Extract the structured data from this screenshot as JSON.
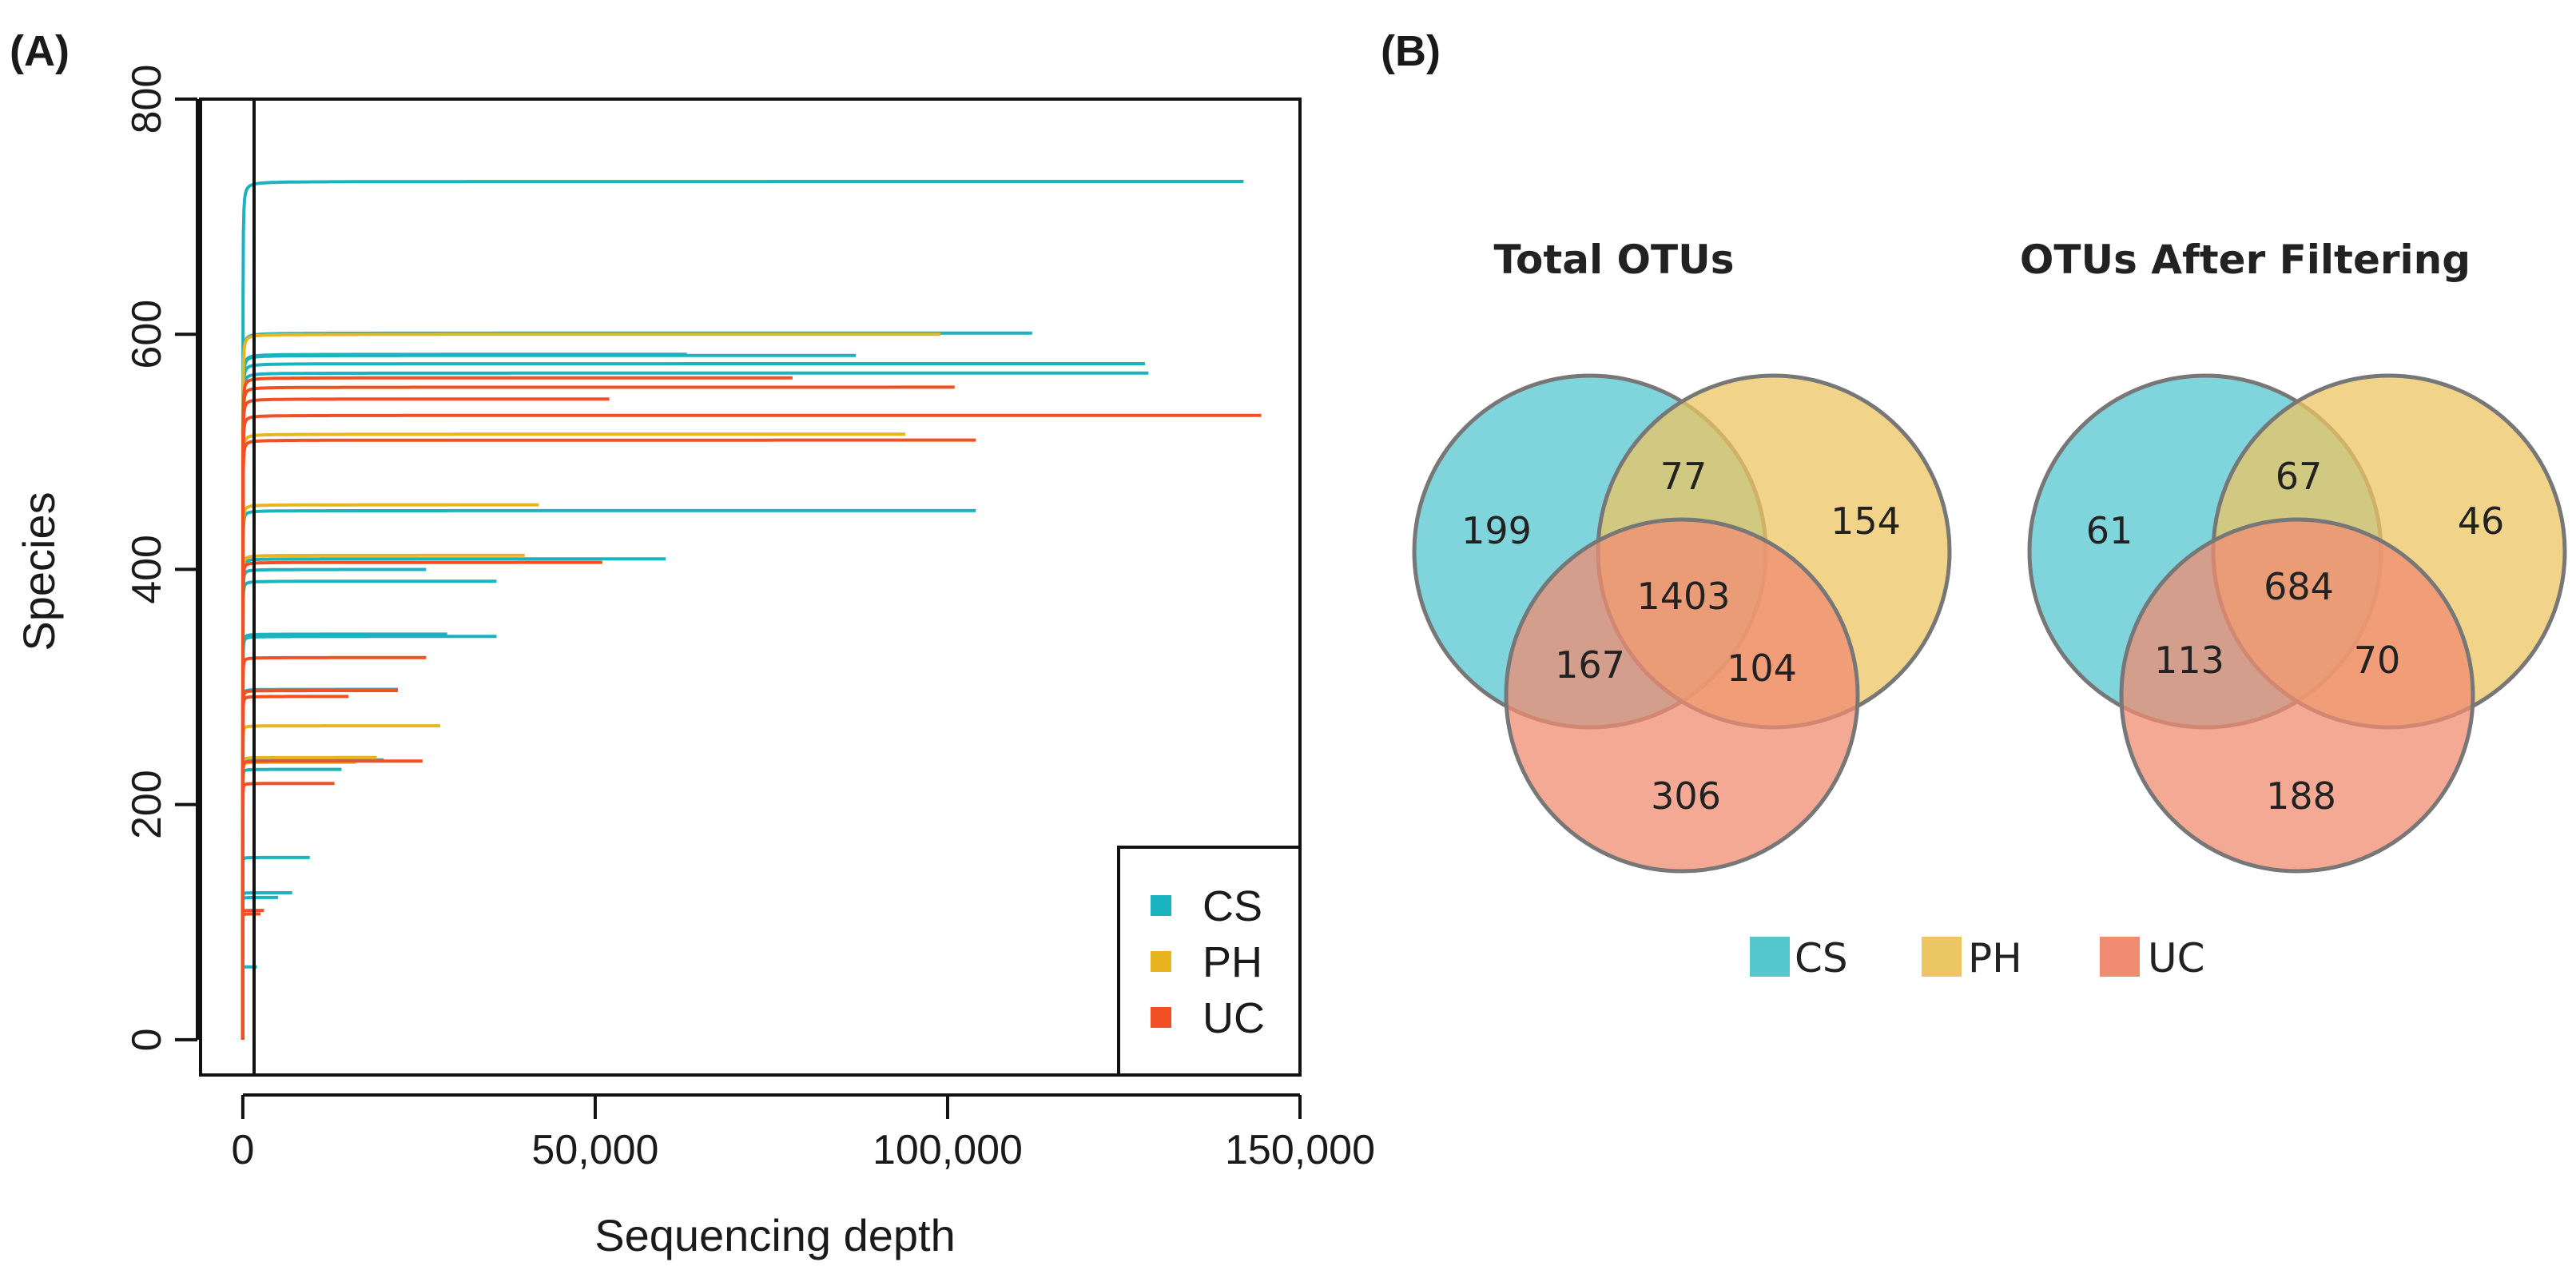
{
  "colors": {
    "CS": "#1bb3c0",
    "PH": "#e8b420",
    "UC": "#f05023",
    "venn_CS": "#56c6cf",
    "venn_PH": "#ecc663",
    "venn_UC": "#f08c72"
  },
  "panelA": {
    "label": "(A)",
    "xlabel": "Sequencing depth",
    "ylabel": "Species",
    "xticks": [
      "0",
      "50,000",
      "100,000",
      "150,000"
    ],
    "yticks": [
      "0",
      "200",
      "400",
      "600",
      "800"
    ],
    "legend": [
      "CS",
      "PH",
      "UC"
    ]
  },
  "panelB": {
    "label": "(B)",
    "legend": [
      "CS",
      "PH",
      "UC"
    ]
  },
  "chart_data": [
    {
      "type": "line",
      "xlabel": "Sequencing depth",
      "ylabel": "Species",
      "xlim": [
        -6000,
        150000
      ],
      "ylim": [
        -30,
        800
      ],
      "xticks": [
        0,
        50000,
        100000,
        150000
      ],
      "yticks": [
        0,
        200,
        400,
        600,
        800
      ],
      "vline_x": 1800,
      "grid": false,
      "legend_position": "bottom-right",
      "series": [
        {
          "name": "CS",
          "curves": [
            {
              "max_depth": 142000,
              "species": 730
            },
            {
              "max_depth": 112000,
              "species": 601
            },
            {
              "max_depth": 128000,
              "species": 575
            },
            {
              "max_depth": 87000,
              "species": 582
            },
            {
              "max_depth": 128500,
              "species": 567
            },
            {
              "max_depth": 63000,
              "species": 583
            },
            {
              "max_depth": 104000,
              "species": 450
            },
            {
              "max_depth": 60000,
              "species": 409
            },
            {
              "max_depth": 36000,
              "species": 390
            },
            {
              "max_depth": 26000,
              "species": 400
            },
            {
              "max_depth": 36000,
              "species": 343
            },
            {
              "max_depth": 29000,
              "species": 345
            },
            {
              "max_depth": 22000,
              "species": 298
            },
            {
              "max_depth": 20000,
              "species": 238
            },
            {
              "max_depth": 14000,
              "species": 230
            },
            {
              "max_depth": 9500,
              "species": 155
            },
            {
              "max_depth": 7000,
              "species": 125
            },
            {
              "max_depth": 5000,
              "species": 121
            },
            {
              "max_depth": 2000,
              "species": 62
            }
          ]
        },
        {
          "name": "PH",
          "curves": [
            {
              "max_depth": 99000,
              "species": 600
            },
            {
              "max_depth": 94000,
              "species": 515
            },
            {
              "max_depth": 42000,
              "species": 455
            },
            {
              "max_depth": 40000,
              "species": 412
            },
            {
              "max_depth": 28000,
              "species": 267
            },
            {
              "max_depth": 19000,
              "species": 240
            },
            {
              "max_depth": 16000,
              "species": 236
            }
          ]
        },
        {
          "name": "UC",
          "curves": [
            {
              "max_depth": 144500,
              "species": 531
            },
            {
              "max_depth": 101000,
              "species": 555
            },
            {
              "max_depth": 78000,
              "species": 563
            },
            {
              "max_depth": 52000,
              "species": 545
            },
            {
              "max_depth": 104000,
              "species": 510
            },
            {
              "max_depth": 51000,
              "species": 406
            },
            {
              "max_depth": 26000,
              "species": 325
            },
            {
              "max_depth": 22000,
              "species": 297
            },
            {
              "max_depth": 15000,
              "species": 292
            },
            {
              "max_depth": 25500,
              "species": 237
            },
            {
              "max_depth": 13000,
              "species": 218
            },
            {
              "max_depth": 3000,
              "species": 110
            },
            {
              "max_depth": 2500,
              "species": 107
            }
          ]
        }
      ]
    },
    {
      "type": "venn",
      "title": "Total OTUs",
      "sets": [
        "CS",
        "PH",
        "UC"
      ],
      "regions": {
        "CS_only": 199,
        "PH_only": 154,
        "UC_only": 306,
        "CS_PH": 77,
        "CS_UC": 167,
        "PH_UC": 104,
        "CS_PH_UC": 1403
      },
      "labels": {
        "CS_only": "199",
        "PH_only": "154",
        "UC_only": "306",
        "CS_PH": "77",
        "CS_UC": "167",
        "PH_UC": "104",
        "CS_PH_UC": "1403"
      }
    },
    {
      "type": "venn",
      "title": "OTUs After Filtering",
      "sets": [
        "CS",
        "PH",
        "UC"
      ],
      "regions": {
        "CS_only": 61,
        "PH_only": 46,
        "UC_only": 188,
        "CS_PH": 67,
        "CS_UC": 113,
        "PH_UC": 70,
        "CS_PH_UC": 684
      },
      "labels": {
        "CS_only": "61",
        "PH_only": "46",
        "UC_only": "188",
        "CS_PH": "67",
        "CS_UC": "113",
        "PH_UC": "70",
        "CS_PH_UC": "684"
      }
    }
  ]
}
